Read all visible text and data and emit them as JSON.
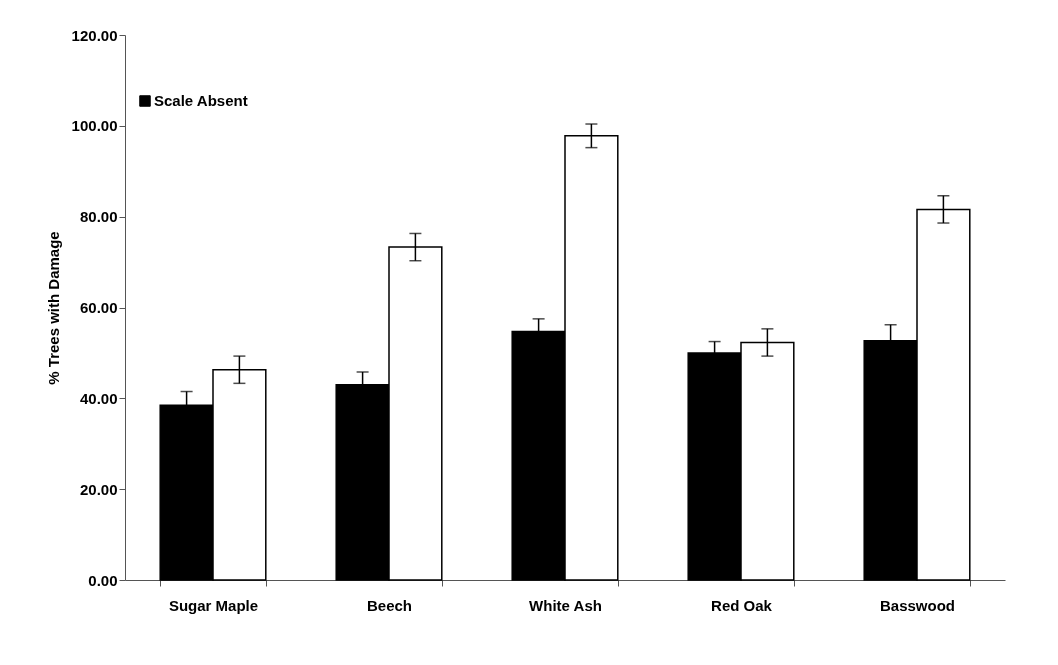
{
  "chart_data": {
    "type": "bar",
    "ylabel": "% Trees with Damage",
    "categories": [
      "Sugar Maple",
      "Beech",
      "White Ash",
      "Red Oak",
      "Basswood"
    ],
    "series": [
      {
        "name": "Scale Absent",
        "color": "#000000",
        "values": [
          38.5,
          43.0,
          54.7,
          50.0,
          52.7
        ],
        "errors": [
          3.0,
          2.8,
          2.8,
          2.5,
          3.5
        ]
      },
      {
        "color": "#ffffff",
        "values": [
          46.3,
          73.3,
          97.8,
          52.3,
          81.6
        ],
        "errors": [
          3.0,
          3.0,
          2.6,
          3.0,
          3.0
        ]
      }
    ],
    "ylim": [
      0,
      120
    ],
    "yticks": [
      {
        "value": 0,
        "label": "0.00"
      },
      {
        "value": 20,
        "label": "20.00"
      },
      {
        "value": 40,
        "label": "40.00"
      },
      {
        "value": 60,
        "label": "60.00"
      },
      {
        "value": 80,
        "label": "80.00"
      },
      {
        "value": 100,
        "label": "100.00"
      },
      {
        "value": 120,
        "label": "120.00"
      }
    ],
    "grid": false,
    "legend": "top left"
  }
}
